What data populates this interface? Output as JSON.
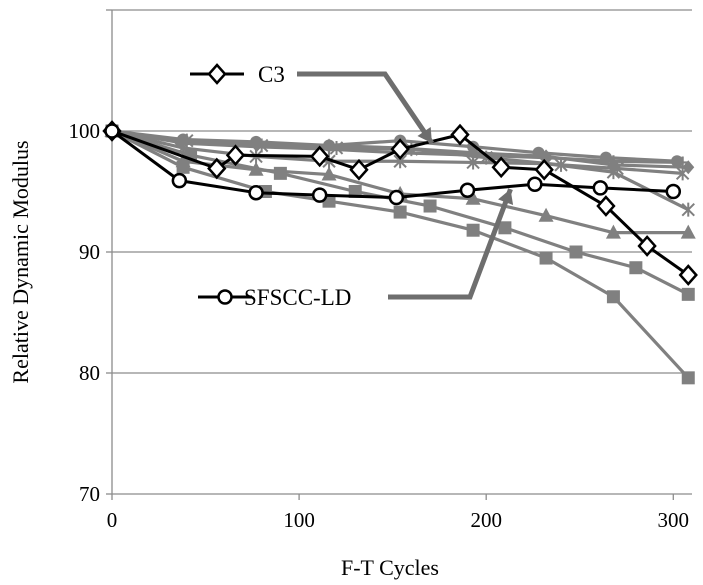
{
  "chart_data": {
    "type": "line",
    "title": "",
    "xlabel": "F-T Cycles",
    "ylabel": "Relative Dynamic Modulus",
    "xlim": [
      0,
      310
    ],
    "ylim": [
      70,
      110
    ],
    "x_ticks": [
      0,
      100,
      200,
      300
    ],
    "y_ticks": [
      70,
      80,
      90,
      100
    ],
    "x_tick_labels": [
      "0",
      "100",
      "200",
      "300"
    ],
    "y_tick_labels": [
      "70",
      "80",
      "90",
      "100"
    ],
    "grid": "horizontal",
    "legend": "none",
    "series": [
      {
        "name": "C3",
        "color": "#000000",
        "marker": "diamond-open",
        "x": [
          0,
          56,
          66,
          111,
          132,
          154,
          186,
          208,
          231,
          264,
          286,
          308
        ],
        "y": [
          100,
          96.9,
          98.0,
          97.9,
          96.8,
          98.5,
          99.7,
          97.0,
          96.8,
          93.8,
          90.5,
          88.1
        ]
      },
      {
        "name": "SFSCC-LD",
        "color": "#000000",
        "marker": "circle-open",
        "x": [
          0,
          36,
          77,
          111,
          152,
          190,
          226,
          261,
          300
        ],
        "y": [
          100,
          95.9,
          94.9,
          94.7,
          94.5,
          95.1,
          95.6,
          95.3,
          95.0
        ]
      },
      {
        "color": "#808080",
        "marker": "square",
        "x": [
          0,
          38,
          82,
          116,
          154,
          193,
          232,
          268,
          308
        ],
        "y": [
          100,
          97.0,
          95.0,
          94.2,
          93.3,
          91.8,
          89.5,
          86.3,
          79.6
        ]
      },
      {
        "color": "#808080",
        "marker": "square",
        "x": [
          0,
          42,
          90,
          130,
          170,
          210,
          248,
          280,
          308
        ],
        "y": [
          100,
          98.0,
          96.5,
          95.0,
          93.8,
          92.0,
          90.0,
          88.7,
          86.5
        ]
      },
      {
        "color": "#808080",
        "marker": "triangle",
        "x": [
          0,
          38,
          77,
          116,
          154,
          193,
          232,
          268,
          308
        ],
        "y": [
          100,
          97.5,
          96.8,
          96.4,
          94.8,
          94.4,
          93.0,
          91.6,
          91.6
        ]
      },
      {
        "color": "#808080",
        "marker": "asterisk",
        "x": [
          0,
          38,
          77,
          116,
          154,
          193,
          232,
          268,
          308
        ],
        "y": [
          100,
          98.6,
          97.9,
          97.5,
          97.5,
          97.4,
          97.3,
          96.6,
          93.5
        ]
      },
      {
        "color": "#808080",
        "marker": "asterisk",
        "x": [
          0,
          40,
          80,
          120,
          160,
          200,
          240,
          270,
          305
        ],
        "y": [
          100,
          99.2,
          98.8,
          98.6,
          98.5,
          97.8,
          97.2,
          96.9,
          96.5
        ]
      },
      {
        "color": "#808080",
        "marker": "circle",
        "x": [
          0,
          38,
          77,
          116,
          154,
          193,
          228,
          264,
          302
        ],
        "y": [
          100,
          99.3,
          99.1,
          98.8,
          99.2,
          98.7,
          98.2,
          97.8,
          97.5
        ]
      },
      {
        "color": "#808080",
        "marker": "cross",
        "x": [
          0,
          38,
          77,
          116,
          154,
          193,
          232,
          268,
          305
        ],
        "y": [
          100,
          99.0,
          98.7,
          98.5,
          98.2,
          98.0,
          97.8,
          97.5,
          97.4
        ]
      },
      {
        "color": "#808080",
        "marker": "diamond",
        "x": [
          0,
          36,
          77,
          116,
          154,
          193,
          232,
          268,
          308
        ],
        "y": [
          100,
          99.1,
          98.9,
          98.8,
          98.6,
          98.2,
          97.9,
          97.2,
          97.0
        ]
      }
    ],
    "annotations": [
      {
        "label": "C3",
        "marker": "diamond-open",
        "arrow_to": [
          171,
          99
        ]
      },
      {
        "label": "SFSCC-LD",
        "marker": "circle-open",
        "arrow_to": [
          213,
          95.2
        ]
      }
    ]
  }
}
